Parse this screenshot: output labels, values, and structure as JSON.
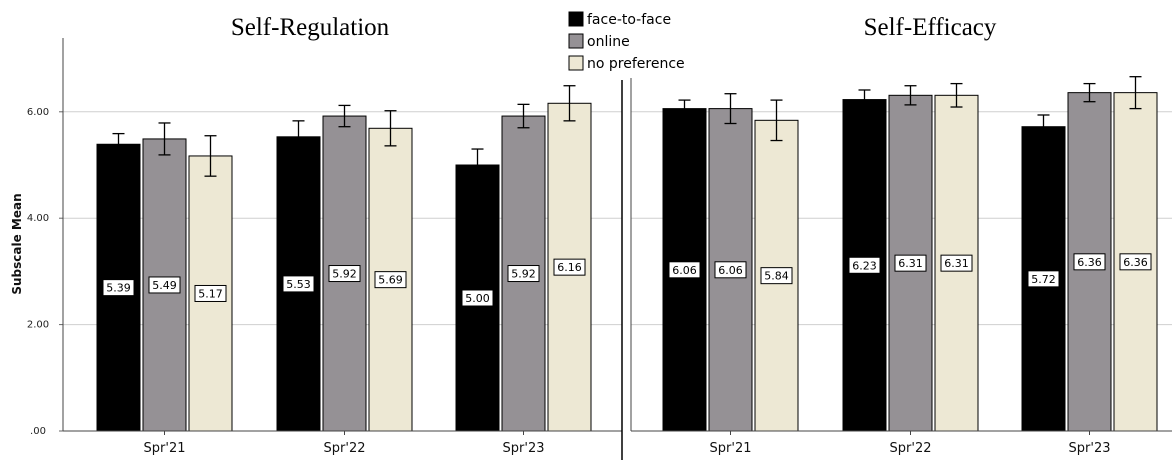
{
  "chart_data": [
    {
      "type": "bar",
      "title": "Self-Regulation",
      "ylabel": "Subscale Mean",
      "categories": [
        "Spr'21",
        "Spr'22",
        "Spr'23"
      ],
      "yticks": [
        ".00",
        "2.00",
        "4.00",
        "6.00"
      ],
      "ylim": [
        0,
        7.4
      ],
      "grid": true,
      "series": [
        {
          "name": "face-to-face",
          "values": [
            5.39,
            5.53,
            5.0
          ],
          "error": [
            0.2,
            0.3,
            0.3
          ]
        },
        {
          "name": "online",
          "values": [
            5.49,
            5.92,
            5.92
          ],
          "error": [
            0.3,
            0.2,
            0.22
          ]
        },
        {
          "name": "no preference",
          "values": [
            5.17,
            5.69,
            6.16
          ],
          "error": [
            0.38,
            0.33,
            0.33
          ]
        }
      ],
      "data_labels": [
        [
          "5.39",
          "5.53",
          "5.00"
        ],
        [
          "5.49",
          "5.92",
          "5.92"
        ],
        [
          "5.17",
          "5.69",
          "6.16"
        ]
      ]
    },
    {
      "type": "bar",
      "title": "Self-Efficacy",
      "ylabel": "",
      "categories": [
        "Spr'21",
        "Spr'22",
        "Spr'23"
      ],
      "ylim": [
        0,
        7.4
      ],
      "grid": true,
      "series": [
        {
          "name": "face-to-face",
          "values": [
            6.06,
            6.23,
            5.72
          ],
          "error": [
            0.16,
            0.18,
            0.22
          ]
        },
        {
          "name": "online",
          "values": [
            6.06,
            6.31,
            6.36
          ],
          "error": [
            0.28,
            0.18,
            0.17
          ]
        },
        {
          "name": "no preference",
          "values": [
            5.84,
            6.31,
            6.36
          ],
          "error": [
            0.38,
            0.22,
            0.3
          ]
        }
      ],
      "data_labels": [
        [
          "6.06",
          "6.23",
          "5.72"
        ],
        [
          "6.06",
          "6.31",
          "6.36"
        ],
        [
          "5.84",
          "6.31",
          "6.36"
        ]
      ]
    }
  ],
  "legend": {
    "position": "top-center",
    "items": [
      {
        "label": "face-to-face",
        "color": "#000000"
      },
      {
        "label": "online",
        "color": "#959195"
      },
      {
        "label": "no preference",
        "color": "#ede8d4"
      }
    ]
  },
  "colors": {
    "face_to_face": "#000000",
    "online": "#959195",
    "no_preference": "#ede8d4"
  }
}
